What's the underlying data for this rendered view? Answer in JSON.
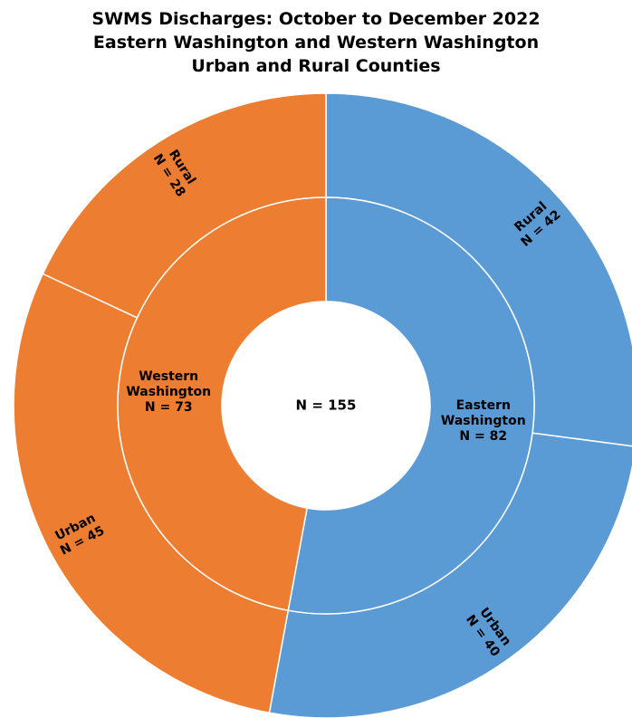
{
  "chart_data": {
    "type": "sunburst",
    "title_lines": [
      "SWMS Discharges: October to December 2022",
      "Eastern Washington and Western Washington",
      "Urban and Rural Counties"
    ],
    "total": 155,
    "center_label": "N = 155",
    "inner": [
      {
        "name": "Eastern Washington",
        "value": 82,
        "label_lines": [
          "Eastern",
          "Washington",
          "N = 82"
        ],
        "color": "#5b9bd5"
      },
      {
        "name": "Western Washington",
        "value": 73,
        "label_lines": [
          "Western",
          "Washington",
          "N = 73"
        ],
        "color": "#ed7d31"
      }
    ],
    "outer": [
      {
        "name": "Rural",
        "parent": "Eastern Washington",
        "value": 42,
        "label_lines": [
          "Rural",
          "N = 42"
        ],
        "color": "#5b9bd5"
      },
      {
        "name": "Urban",
        "parent": "Eastern Washington",
        "value": 40,
        "label_lines": [
          "Urban",
          "N = 40"
        ],
        "color": "#5b9bd5"
      },
      {
        "name": "Urban",
        "parent": "Western Washington",
        "value": 45,
        "label_lines": [
          "Urban",
          "N = 45"
        ],
        "color": "#ed7d31"
      },
      {
        "name": "Rural",
        "parent": "Western Washington",
        "value": 28,
        "label_lines": [
          "Rural",
          "N = 28"
        ],
        "color": "#ed7d31"
      }
    ],
    "start_angle": "12 o'clock",
    "direction": "clockwise"
  }
}
